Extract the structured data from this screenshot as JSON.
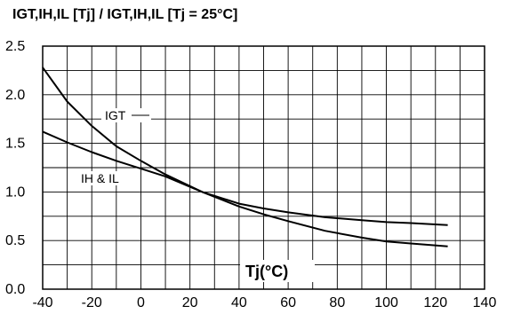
{
  "chart_data": {
    "type": "line",
    "title": "IGT,IH,IL [Tj] / IGT,IH,IL [Tj = 25°C]",
    "xlabel": "Tj(°C)",
    "ylabel": "",
    "xlim": [
      -40,
      140
    ],
    "ylim": [
      0.0,
      2.5
    ],
    "x_ticks": [
      "-40",
      "-20",
      "0",
      "20",
      "40",
      "60",
      "80",
      "100",
      "120",
      "140"
    ],
    "y_ticks": [
      "0.0",
      "0.5",
      "1.0",
      "1.5",
      "2.0",
      "2.5"
    ],
    "minor_x_step": 10,
    "minor_y_step": 0.25,
    "grid": true,
    "series": [
      {
        "name": "IGT",
        "x": [
          -40,
          -30,
          -20,
          -10,
          0,
          10,
          25,
          40,
          50,
          60,
          75,
          90,
          100,
          110,
          125
        ],
        "y": [
          2.28,
          1.93,
          1.68,
          1.47,
          1.32,
          1.18,
          1.0,
          0.88,
          0.83,
          0.79,
          0.74,
          0.71,
          0.69,
          0.68,
          0.66
        ]
      },
      {
        "name": "IH & IL",
        "x": [
          -40,
          -30,
          -20,
          -10,
          0,
          10,
          25,
          40,
          50,
          60,
          75,
          90,
          100,
          110,
          125
        ],
        "y": [
          1.62,
          1.51,
          1.41,
          1.32,
          1.24,
          1.16,
          1.0,
          0.85,
          0.77,
          0.7,
          0.6,
          0.53,
          0.49,
          0.47,
          0.44
        ]
      }
    ]
  }
}
